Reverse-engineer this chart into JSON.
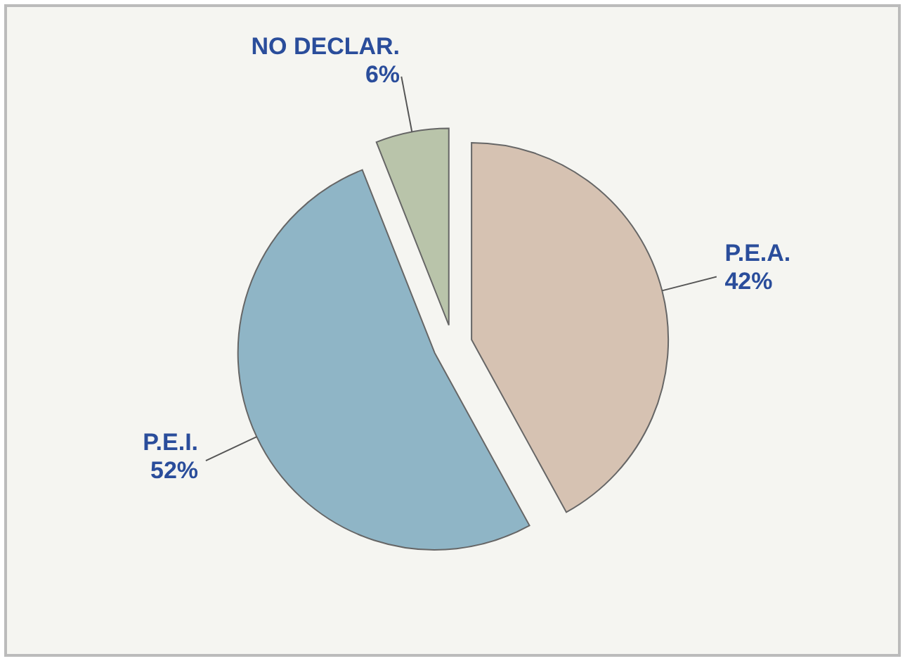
{
  "chart_data": {
    "type": "pie",
    "categories": [
      "P.E.A.",
      "P.E.I.",
      "NO DECLAR."
    ],
    "values": [
      42,
      52,
      6
    ],
    "colors": [
      "#d6c2b2",
      "#8fb5c6",
      "#b9c4aa"
    ],
    "value_labels": [
      "42%",
      "52%",
      "6%"
    ],
    "legend": false
  }
}
